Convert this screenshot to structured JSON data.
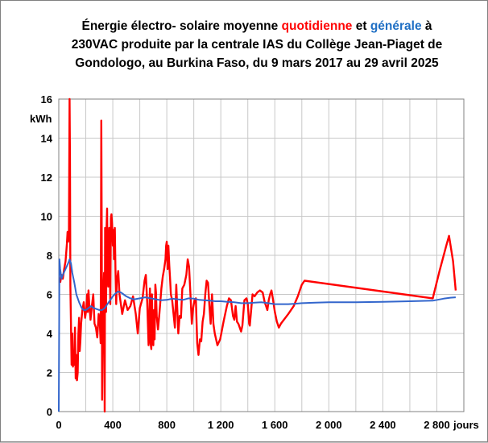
{
  "chart_data": {
    "type": "line",
    "title": {
      "line1_before": "Énergie électro- solaire moyenne ",
      "line1_red": "quotidienne",
      "line1_mid": " et ",
      "line1_blue": "générale",
      "line1_after": " à",
      "line2": "230VAC produite par la centrale IAS du Collège Jean-Piaget de",
      "line3": "Gondologo, au Burkina Faso, du 9 mars 2017 au 29 avril 2025"
    },
    "xlabel": "jours",
    "ylabel": "kWh",
    "xlim": [
      0,
      3000
    ],
    "ylim": [
      0,
      16
    ],
    "x_ticks": [
      0,
      400,
      800,
      1200,
      1600,
      2000,
      2400,
      2800
    ],
    "x_tick_labels": [
      "0",
      "400",
      "800",
      "1 200",
      "1 600",
      "2 000",
      "2 400",
      "2 800"
    ],
    "y_ticks": [
      0,
      2,
      4,
      6,
      8,
      10,
      12,
      14,
      16
    ],
    "x_grid_step": 200,
    "y_grid_step": 2,
    "grid": true,
    "colors": {
      "quotidienne": "#ff0000",
      "generale": "#3366cc"
    },
    "series": [
      {
        "key": "quotidienne",
        "color": "#ff0000",
        "points": [
          [
            10,
            6.6
          ],
          [
            20,
            7.0
          ],
          [
            30,
            6.8
          ],
          [
            40,
            7.3
          ],
          [
            50,
            7.7
          ],
          [
            60,
            8.6
          ],
          [
            65,
            9.2
          ],
          [
            70,
            8.7
          ],
          [
            75,
            9.3
          ],
          [
            80,
            16.0
          ],
          [
            83,
            13.0
          ],
          [
            86,
            6.4
          ],
          [
            90,
            4.6
          ],
          [
            95,
            2.4
          ],
          [
            100,
            4.0
          ],
          [
            105,
            2.3
          ],
          [
            110,
            2.8
          ],
          [
            115,
            2.4
          ],
          [
            120,
            4.3
          ],
          [
            125,
            1.7
          ],
          [
            130,
            2.9
          ],
          [
            135,
            1.6
          ],
          [
            140,
            2.0
          ],
          [
            145,
            3.9
          ],
          [
            150,
            4.8
          ],
          [
            155,
            3.1
          ],
          [
            160,
            3.6
          ],
          [
            165,
            4.5
          ],
          [
            175,
            5.2
          ],
          [
            185,
            5.6
          ],
          [
            195,
            4.8
          ],
          [
            205,
            5.3
          ],
          [
            210,
            6.0
          ],
          [
            215,
            5.1
          ],
          [
            220,
            6.2
          ],
          [
            225,
            5.6
          ],
          [
            235,
            4.7
          ],
          [
            245,
            5.4
          ],
          [
            255,
            6.0
          ],
          [
            265,
            4.5
          ],
          [
            275,
            4.3
          ],
          [
            285,
            3.8
          ],
          [
            295,
            5.0
          ],
          [
            305,
            4.4
          ],
          [
            310,
            3.5
          ],
          [
            315,
            14.9
          ],
          [
            318,
            9.5
          ],
          [
            321,
            0.6
          ],
          [
            325,
            4.3
          ],
          [
            330,
            6.1
          ],
          [
            335,
            7.1
          ],
          [
            340,
            0.0
          ],
          [
            343,
            9.4
          ],
          [
            347,
            8.3
          ],
          [
            350,
            5.1
          ],
          [
            354,
            9.5
          ],
          [
            358,
            10.4
          ],
          [
            362,
            7.1
          ],
          [
            366,
            6.4
          ],
          [
            370,
            7.9
          ],
          [
            374,
            9.4
          ],
          [
            378,
            7.0
          ],
          [
            382,
            5.5
          ],
          [
            386,
            9.9
          ],
          [
            390,
            10.1
          ],
          [
            395,
            9.6
          ],
          [
            400,
            8.5
          ],
          [
            405,
            9.3
          ],
          [
            410,
            7.8
          ],
          [
            415,
            9.4
          ],
          [
            420,
            7.2
          ],
          [
            425,
            5.5
          ],
          [
            430,
            6.7
          ],
          [
            440,
            7.2
          ],
          [
            450,
            6.0
          ],
          [
            470,
            5.0
          ],
          [
            490,
            5.7
          ],
          [
            510,
            5.2
          ],
          [
            530,
            5.4
          ],
          [
            550,
            5.9
          ],
          [
            570,
            5.0
          ],
          [
            585,
            4.0
          ],
          [
            600,
            5.3
          ],
          [
            620,
            5.8
          ],
          [
            635,
            6.7
          ],
          [
            645,
            7.0
          ],
          [
            655,
            5.6
          ],
          [
            665,
            3.4
          ],
          [
            675,
            6.3
          ],
          [
            680,
            3.5
          ],
          [
            685,
            3.2
          ],
          [
            690,
            6.0
          ],
          [
            695,
            3.5
          ],
          [
            700,
            3.4
          ],
          [
            705,
            5.2
          ],
          [
            710,
            3.7
          ],
          [
            715,
            6.5
          ],
          [
            720,
            6.1
          ],
          [
            725,
            4.9
          ],
          [
            735,
            4.2
          ],
          [
            745,
            5.0
          ],
          [
            760,
            6.3
          ],
          [
            770,
            6.9
          ],
          [
            780,
            7.3
          ],
          [
            790,
            7.8
          ],
          [
            795,
            8.5
          ],
          [
            800,
            8.7
          ],
          [
            806,
            7.3
          ],
          [
            812,
            8.5
          ],
          [
            818,
            7.5
          ],
          [
            824,
            6.8
          ],
          [
            830,
            6.0
          ],
          [
            840,
            5.7
          ],
          [
            850,
            5.0
          ],
          [
            860,
            4.3
          ],
          [
            870,
            6.5
          ],
          [
            885,
            4.0
          ],
          [
            895,
            4.9
          ],
          [
            905,
            4.8
          ],
          [
            915,
            6.3
          ],
          [
            930,
            6.5
          ],
          [
            945,
            7.0
          ],
          [
            955,
            7.8
          ],
          [
            965,
            7.4
          ],
          [
            975,
            6.0
          ],
          [
            985,
            4.5
          ],
          [
            995,
            5.3
          ],
          [
            1005,
            5.7
          ],
          [
            1015,
            5.8
          ],
          [
            1025,
            3.5
          ],
          [
            1035,
            2.9
          ],
          [
            1045,
            3.7
          ],
          [
            1055,
            3.6
          ],
          [
            1065,
            4.6
          ],
          [
            1075,
            5.0
          ],
          [
            1085,
            6.0
          ],
          [
            1095,
            6.7
          ],
          [
            1105,
            6.6
          ],
          [
            1115,
            5.5
          ],
          [
            1125,
            4.5
          ],
          [
            1135,
            6.0
          ],
          [
            1145,
            4.5
          ],
          [
            1155,
            4.0
          ],
          [
            1175,
            3.4
          ],
          [
            1195,
            3.7
          ],
          [
            1220,
            4.6
          ],
          [
            1245,
            5.4
          ],
          [
            1260,
            5.8
          ],
          [
            1275,
            5.7
          ],
          [
            1290,
            4.9
          ],
          [
            1300,
            4.7
          ],
          [
            1310,
            5.4
          ],
          [
            1320,
            4.6
          ],
          [
            1330,
            4.5
          ],
          [
            1340,
            4.3
          ],
          [
            1350,
            4.1
          ],
          [
            1360,
            4.4
          ],
          [
            1375,
            5.7
          ],
          [
            1390,
            5.8
          ],
          [
            1400,
            5.5
          ],
          [
            1410,
            4.5
          ],
          [
            1415,
            4.4
          ],
          [
            1425,
            5.2
          ],
          [
            1435,
            6.0
          ],
          [
            1450,
            5.9
          ],
          [
            1470,
            6.1
          ],
          [
            1490,
            6.2
          ],
          [
            1510,
            6.1
          ],
          [
            1525,
            5.6
          ],
          [
            1535,
            5.4
          ],
          [
            1545,
            5.2
          ],
          [
            1555,
            5.7
          ],
          [
            1565,
            6.0
          ],
          [
            1575,
            6.2
          ],
          [
            1585,
            5.8
          ],
          [
            1600,
            5.1
          ],
          [
            1615,
            4.6
          ],
          [
            1630,
            4.3
          ],
          [
            1645,
            4.5
          ],
          [
            1700,
            5.0
          ],
          [
            1740,
            5.4
          ],
          [
            1770,
            5.9
          ],
          [
            1800,
            6.5
          ],
          [
            1820,
            6.7
          ],
          [
            2770,
            5.8
          ],
          [
            2820,
            7.2
          ],
          [
            2870,
            8.5
          ],
          [
            2890,
            9.0
          ],
          [
            2920,
            7.7
          ],
          [
            2940,
            6.2
          ]
        ]
      },
      {
        "key": "generale",
        "color": "#3366cc",
        "points": [
          [
            0,
            0.0
          ],
          [
            5,
            7.8
          ],
          [
            10,
            7.3
          ],
          [
            20,
            6.8
          ],
          [
            30,
            7.0
          ],
          [
            50,
            7.3
          ],
          [
            70,
            7.6
          ],
          [
            80,
            7.8
          ],
          [
            90,
            7.6
          ],
          [
            100,
            7.1
          ],
          [
            115,
            6.6
          ],
          [
            130,
            6.0
          ],
          [
            150,
            5.6
          ],
          [
            170,
            5.3
          ],
          [
            185,
            5.2
          ],
          [
            200,
            5.2
          ],
          [
            220,
            5.3
          ],
          [
            240,
            5.4
          ],
          [
            260,
            5.3
          ],
          [
            280,
            5.25
          ],
          [
            300,
            5.2
          ],
          [
            320,
            5.2
          ],
          [
            340,
            5.3
          ],
          [
            360,
            5.5
          ],
          [
            380,
            5.7
          ],
          [
            400,
            5.9
          ],
          [
            420,
            6.05
          ],
          [
            440,
            6.15
          ],
          [
            460,
            6.1
          ],
          [
            480,
            6.0
          ],
          [
            500,
            5.9
          ],
          [
            530,
            5.8
          ],
          [
            560,
            5.75
          ],
          [
            600,
            5.8
          ],
          [
            640,
            5.85
          ],
          [
            680,
            5.8
          ],
          [
            720,
            5.75
          ],
          [
            760,
            5.7
          ],
          [
            800,
            5.72
          ],
          [
            840,
            5.78
          ],
          [
            880,
            5.75
          ],
          [
            920,
            5.72
          ],
          [
            960,
            5.8
          ],
          [
            1000,
            5.78
          ],
          [
            1040,
            5.72
          ],
          [
            1080,
            5.7
          ],
          [
            1120,
            5.68
          ],
          [
            1160,
            5.65
          ],
          [
            1200,
            5.65
          ],
          [
            1250,
            5.62
          ],
          [
            1300,
            5.6
          ],
          [
            1350,
            5.55
          ],
          [
            1400,
            5.55
          ],
          [
            1450,
            5.58
          ],
          [
            1500,
            5.6
          ],
          [
            1550,
            5.55
          ],
          [
            1600,
            5.5
          ],
          [
            1650,
            5.5
          ],
          [
            1700,
            5.5
          ],
          [
            1750,
            5.52
          ],
          [
            1800,
            5.55
          ],
          [
            1900,
            5.58
          ],
          [
            2000,
            5.6
          ],
          [
            2200,
            5.6
          ],
          [
            2400,
            5.62
          ],
          [
            2600,
            5.65
          ],
          [
            2770,
            5.68
          ],
          [
            2850,
            5.78
          ],
          [
            2900,
            5.83
          ],
          [
            2940,
            5.85
          ]
        ]
      }
    ]
  }
}
